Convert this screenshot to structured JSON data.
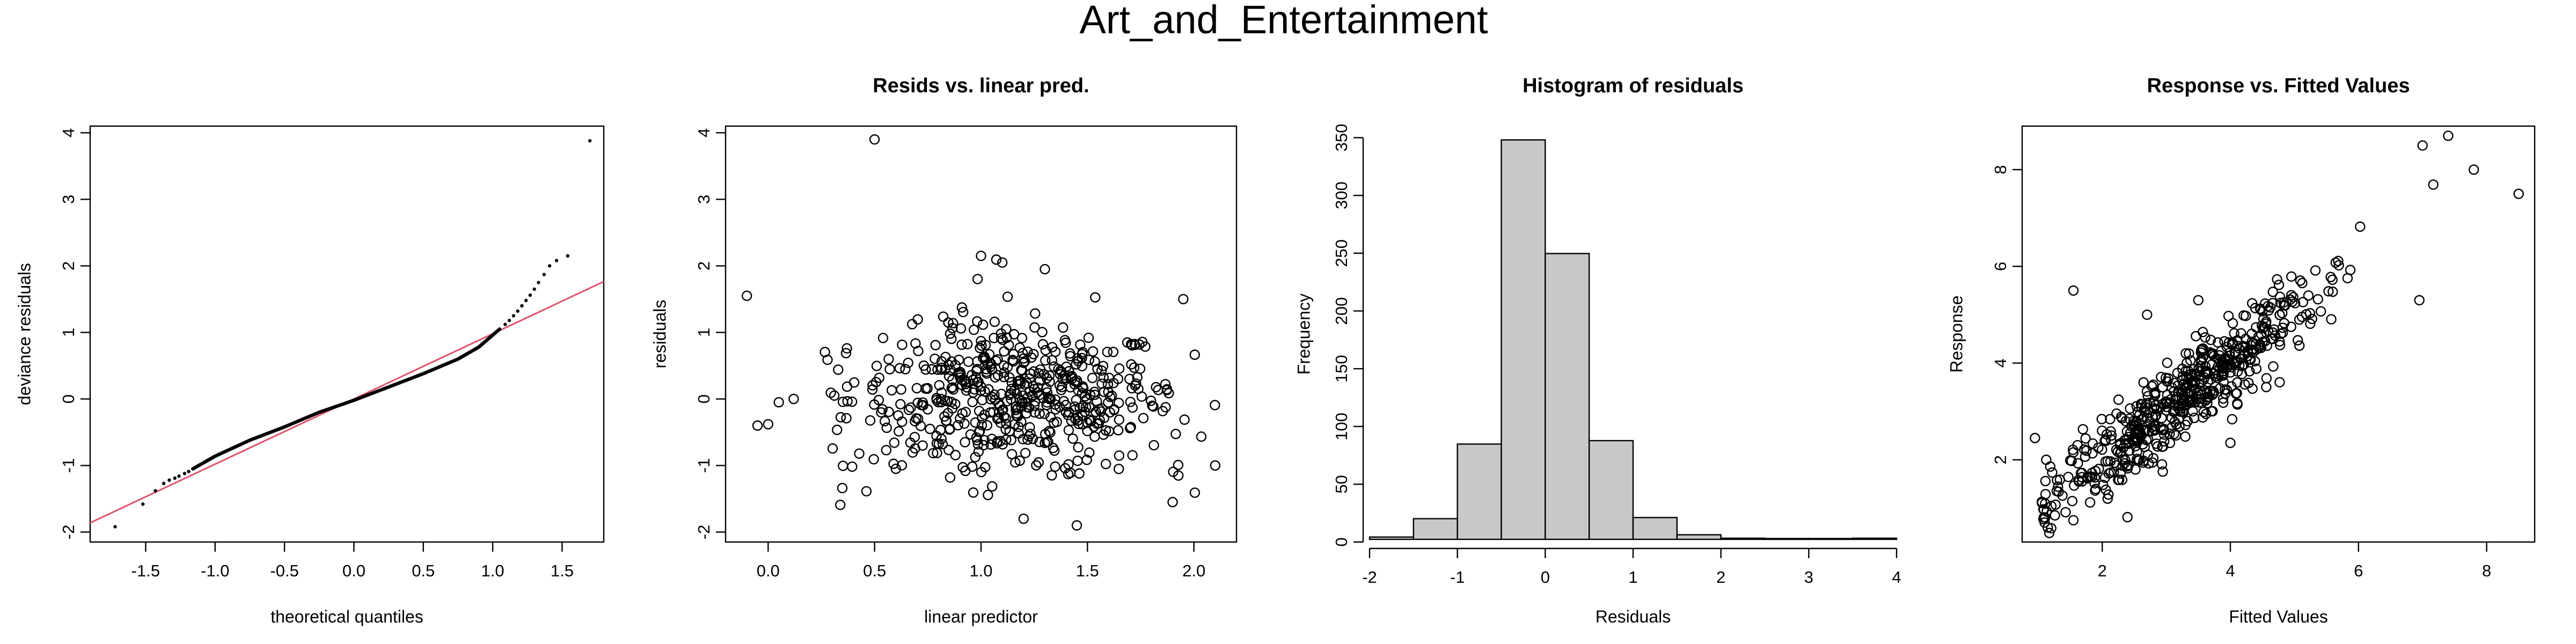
{
  "figure": {
    "title": "Art_and_Entertainment"
  },
  "chart_data": [
    {
      "type": "scatter",
      "title": "",
      "xlabel": "theoretical quantiles",
      "ylabel": "deviance residuals",
      "xlim": [
        -1.9,
        1.8
      ],
      "ylim": [
        -2.15,
        4.1
      ],
      "xticks": [
        -1.5,
        -1.0,
        -0.5,
        0.0,
        0.5,
        1.0,
        1.5
      ],
      "xtick_labels": [
        "-1.5",
        "-1.0",
        "-0.5",
        "0.0",
        "0.5",
        "1.0",
        "1.5"
      ],
      "yticks": [
        -2,
        -1,
        0,
        1,
        2,
        3,
        4
      ],
      "ytick_labels": [
        "-2",
        "-1",
        "0",
        "1",
        "2",
        "3",
        "4"
      ],
      "reference_line": {
        "intercept": 0.0,
        "slope": 0.98,
        "color": "#DF536B"
      },
      "points": [
        [
          -1.72,
          -1.92
        ],
        [
          -1.52,
          -1.58
        ],
        [
          -1.43,
          -1.38
        ],
        [
          -1.37,
          -1.27
        ],
        [
          -1.33,
          -1.22
        ],
        [
          -1.29,
          -1.19
        ],
        [
          -1.26,
          -1.16
        ],
        [
          -1.22,
          -1.12
        ],
        [
          -1.19,
          -1.09
        ],
        [
          -1.16,
          -1.05
        ],
        [
          1.05,
          1.05
        ],
        [
          1.09,
          1.12
        ],
        [
          1.12,
          1.18
        ],
        [
          1.15,
          1.25
        ],
        [
          1.18,
          1.32
        ],
        [
          1.21,
          1.4
        ],
        [
          1.24,
          1.48
        ],
        [
          1.27,
          1.56
        ],
        [
          1.3,
          1.65
        ],
        [
          1.33,
          1.75
        ],
        [
          1.37,
          1.87
        ],
        [
          1.41,
          2.0
        ],
        [
          1.46,
          2.08
        ],
        [
          1.54,
          2.15
        ],
        [
          1.7,
          3.88
        ]
      ],
      "dense_segments": [
        [
          -1.16,
          -1.05
        ],
        [
          -1.0,
          -0.86
        ],
        [
          -0.75,
          -0.62
        ],
        [
          -0.5,
          -0.42
        ],
        [
          -0.25,
          -0.2
        ],
        [
          0.0,
          -0.02
        ],
        [
          0.25,
          0.18
        ],
        [
          0.5,
          0.38
        ],
        [
          0.75,
          0.6
        ],
        [
          0.9,
          0.78
        ],
        [
          1.05,
          1.05
        ]
      ]
    },
    {
      "type": "scatter",
      "title": "Resids vs. linear pred.",
      "xlabel": "linear predictor",
      "ylabel": "residuals",
      "xlim": [
        -0.2,
        2.2
      ],
      "ylim": [
        -2.15,
        4.1
      ],
      "xticks": [
        0.0,
        0.5,
        1.0,
        1.5,
        2.0
      ],
      "xtick_labels": [
        "0.0",
        "0.5",
        "1.0",
        "1.5",
        "2.0"
      ],
      "yticks": [
        -2,
        -1,
        0,
        1,
        2,
        3,
        4
      ],
      "ytick_labels": [
        "-2",
        "-1",
        "0",
        "1",
        "2",
        "3",
        "4"
      ],
      "outliers": [
        [
          -0.1,
          1.55
        ],
        [
          0.5,
          3.9
        ],
        [
          -0.05,
          -0.4
        ],
        [
          0.0,
          -0.38
        ],
        [
          0.05,
          -0.05
        ],
        [
          0.12,
          0.0
        ],
        [
          1.0,
          2.15
        ],
        [
          1.1,
          2.05
        ],
        [
          1.45,
          -1.9
        ],
        [
          1.95,
          1.5
        ],
        [
          2.1,
          -1.0
        ],
        [
          1.9,
          -1.55
        ],
        [
          0.6,
          -1.05
        ],
        [
          1.3,
          1.95
        ],
        [
          1.2,
          -1.8
        ]
      ],
      "cloud": {
        "n": 560,
        "x_center": 1.15,
        "x_sd": 0.38,
        "x_min": 0.25,
        "x_max": 2.1,
        "y_sd": 0.55
      }
    },
    {
      "type": "bar",
      "title": "Histogram of residuals",
      "xlabel": "Residuals",
      "ylabel": "Frequency",
      "xlim": [
        -2.0,
        4.0
      ],
      "ylim": [
        0,
        360
      ],
      "xticks": [
        -2,
        -1,
        0,
        1,
        2,
        3,
        4
      ],
      "xtick_labels": [
        "-2",
        "-1",
        "0",
        "1",
        "2",
        "3",
        "4"
      ],
      "yticks": [
        0,
        50,
        100,
        150,
        200,
        250,
        300,
        350
      ],
      "ytick_labels": [
        "0",
        "50",
        "100",
        "150",
        "200",
        "250",
        "300",
        "350"
      ],
      "bin_edges": [
        -2.0,
        -1.5,
        -1.0,
        -0.5,
        0.0,
        0.5,
        1.0,
        1.5,
        2.0,
        2.5,
        3.0,
        3.5,
        4.0
      ],
      "values": [
        2,
        18,
        83,
        348,
        249,
        86,
        19,
        4,
        1,
        0,
        0,
        1
      ],
      "bar_color": "#C8C8C8"
    },
    {
      "type": "scatter",
      "title": "Response vs. Fitted Values",
      "xlabel": "Fitted Values",
      "ylabel": "Response",
      "xlim": [
        0.75,
        8.75
      ],
      "ylim": [
        0.3,
        8.9
      ],
      "xticks": [
        2,
        4,
        6,
        8
      ],
      "xtick_labels": [
        "2",
        "4",
        "6",
        "8"
      ],
      "yticks": [
        2,
        4,
        6,
        8
      ],
      "ytick_labels": [
        "2",
        "4",
        "6",
        "8"
      ],
      "outliers": [
        [
          0.95,
          2.45
        ],
        [
          1.55,
          5.5
        ],
        [
          8.5,
          7.5
        ],
        [
          7.4,
          8.7
        ],
        [
          7.0,
          8.5
        ],
        [
          7.8,
          8.0
        ],
        [
          6.95,
          5.3
        ],
        [
          1.55,
          0.75
        ],
        [
          1.15,
          0.6
        ],
        [
          4.0,
          2.35
        ],
        [
          2.7,
          5.0
        ],
        [
          3.5,
          5.3
        ]
      ],
      "cloud": {
        "n": 560,
        "x_center": 3.3,
        "x_sd": 1.1,
        "x_min": 1.05,
        "x_max": 8.2,
        "y_sd": 0.42
      }
    }
  ]
}
